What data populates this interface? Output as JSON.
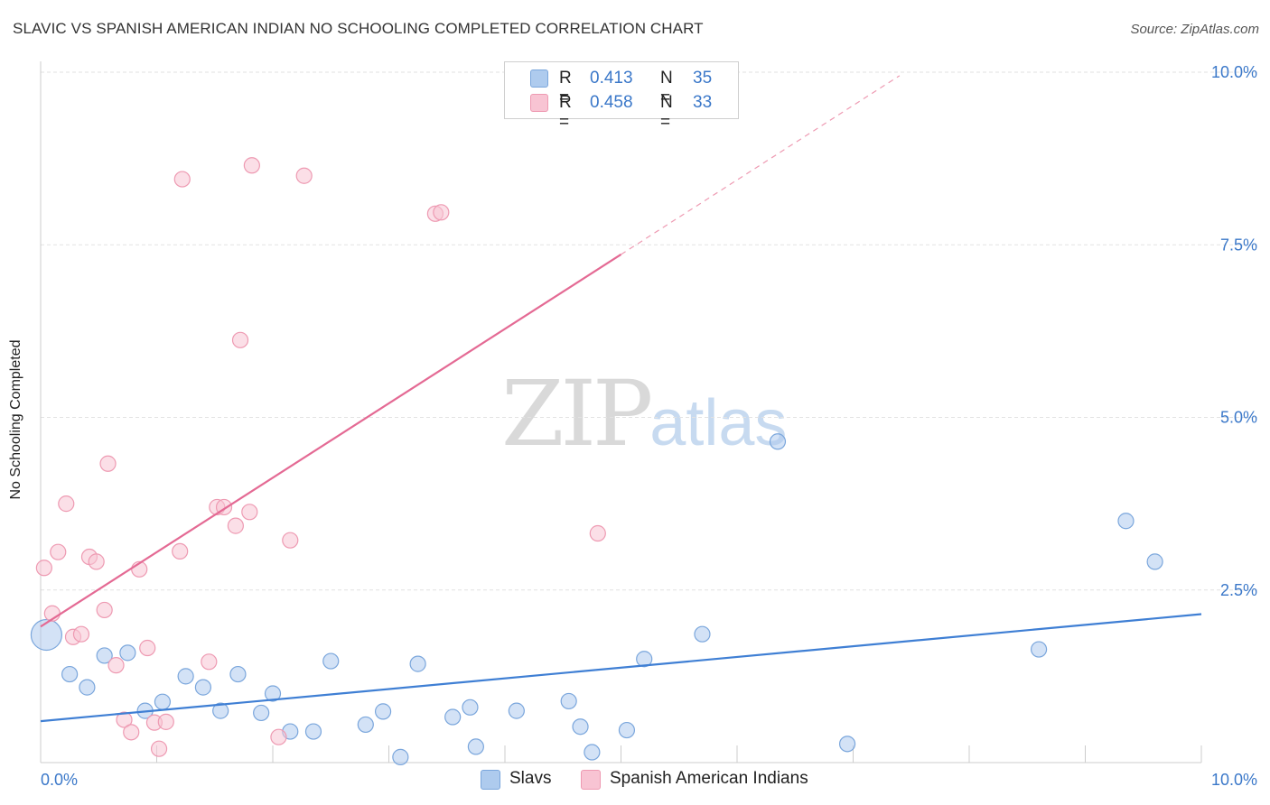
{
  "title": "SLAVIC VS SPANISH AMERICAN INDIAN NO SCHOOLING COMPLETED CORRELATION CHART",
  "source": "Source: ZipAtlas.com",
  "watermark": {
    "zip": "ZIP",
    "atlas": "atlas"
  },
  "legend": {
    "rows": [
      {
        "r_label": "R =",
        "r_value": "0.413",
        "n_label": "N =",
        "n_value": "35",
        "color": "#aecbee",
        "border": "#7aa6dc"
      },
      {
        "r_label": "R =",
        "r_value": "0.458",
        "n_label": "N =",
        "n_value": "33",
        "color": "#f8c4d3",
        "border": "#ee9ab2"
      }
    ]
  },
  "bottom_legend": [
    {
      "label": "Slavs",
      "color": "#aecbee",
      "border": "#7aa6dc"
    },
    {
      "label": "Spanish American Indians",
      "color": "#f8c4d3",
      "border": "#ee9ab2"
    }
  ],
  "chart_data": {
    "type": "scatter",
    "title": "SLAVIC VS SPANISH AMERICAN INDIAN NO SCHOOLING COMPLETED CORRELATION CHART",
    "xlabel": "",
    "ylabel": "No Schooling Completed",
    "xlim": [
      0,
      10
    ],
    "ylim": [
      0,
      10
    ],
    "x_tick_labels": [
      "0.0%",
      "10.0%"
    ],
    "y_ticks": [
      2.5,
      5.0,
      7.5,
      10.0
    ],
    "y_tick_labels": [
      "2.5%",
      "5.0%",
      "7.5%",
      "10.0%"
    ],
    "grid": true,
    "series": [
      {
        "name": "Slavs",
        "color": "#3f7fd4",
        "fill": "#aecbee",
        "stroke": "#7aa6dc",
        "trend": {
          "x0": 0.0,
          "y0": 0.6,
          "x1": 10.0,
          "y1": 2.15
        },
        "points": [
          {
            "x": 0.05,
            "y": 1.85,
            "big": true
          },
          {
            "x": 0.25,
            "y": 1.28
          },
          {
            "x": 0.4,
            "y": 1.09
          },
          {
            "x": 0.55,
            "y": 1.55
          },
          {
            "x": 0.75,
            "y": 1.59
          },
          {
            "x": 0.9,
            "y": 0.75
          },
          {
            "x": 1.05,
            "y": 0.88
          },
          {
            "x": 1.25,
            "y": 1.25
          },
          {
            "x": 1.4,
            "y": 1.09
          },
          {
            "x": 1.55,
            "y": 0.75
          },
          {
            "x": 1.7,
            "y": 1.28
          },
          {
            "x": 1.9,
            "y": 0.72
          },
          {
            "x": 2.0,
            "y": 1.0
          },
          {
            "x": 2.15,
            "y": 0.45
          },
          {
            "x": 2.35,
            "y": 0.45
          },
          {
            "x": 2.5,
            "y": 1.47
          },
          {
            "x": 2.8,
            "y": 0.55
          },
          {
            "x": 2.95,
            "y": 0.74
          },
          {
            "x": 3.1,
            "y": 0.08
          },
          {
            "x": 3.25,
            "y": 1.43
          },
          {
            "x": 3.55,
            "y": 0.66
          },
          {
            "x": 3.7,
            "y": 0.8
          },
          {
            "x": 3.75,
            "y": 0.23
          },
          {
            "x": 4.1,
            "y": 0.75
          },
          {
            "x": 4.55,
            "y": 0.89
          },
          {
            "x": 4.65,
            "y": 0.52
          },
          {
            "x": 4.75,
            "y": 0.15
          },
          {
            "x": 5.05,
            "y": 0.47
          },
          {
            "x": 5.2,
            "y": 1.5
          },
          {
            "x": 5.7,
            "y": 1.86
          },
          {
            "x": 6.35,
            "y": 4.65
          },
          {
            "x": 6.95,
            "y": 0.27
          },
          {
            "x": 8.6,
            "y": 1.64
          },
          {
            "x": 9.35,
            "y": 3.5
          },
          {
            "x": 9.6,
            "y": 2.91
          }
        ]
      },
      {
        "name": "Spanish American Indians",
        "color": "#e46a94",
        "fill": "#f8c4d3",
        "stroke": "#ee9ab2",
        "trend": {
          "x0": 0.0,
          "y0": 1.97,
          "x1": 5.0,
          "y1": 7.36,
          "dash_to": {
            "x": 7.4,
            "y": 9.95
          }
        },
        "points": [
          {
            "x": 0.03,
            "y": 2.82
          },
          {
            "x": 0.1,
            "y": 2.16
          },
          {
            "x": 0.15,
            "y": 3.05
          },
          {
            "x": 0.22,
            "y": 3.75
          },
          {
            "x": 0.28,
            "y": 1.82
          },
          {
            "x": 0.35,
            "y": 1.86
          },
          {
            "x": 0.42,
            "y": 2.98
          },
          {
            "x": 0.48,
            "y": 2.91
          },
          {
            "x": 0.55,
            "y": 2.21
          },
          {
            "x": 0.58,
            "y": 4.33
          },
          {
            "x": 0.65,
            "y": 1.41
          },
          {
            "x": 0.72,
            "y": 0.62
          },
          {
            "x": 0.78,
            "y": 0.44
          },
          {
            "x": 0.85,
            "y": 2.8
          },
          {
            "x": 0.92,
            "y": 1.66
          },
          {
            "x": 0.98,
            "y": 0.58
          },
          {
            "x": 1.02,
            "y": 0.2
          },
          {
            "x": 1.08,
            "y": 0.59
          },
          {
            "x": 1.2,
            "y": 3.06
          },
          {
            "x": 1.22,
            "y": 8.45
          },
          {
            "x": 1.45,
            "y": 1.46
          },
          {
            "x": 1.52,
            "y": 3.7
          },
          {
            "x": 1.58,
            "y": 3.7
          },
          {
            "x": 1.68,
            "y": 3.43
          },
          {
            "x": 1.72,
            "y": 6.12
          },
          {
            "x": 1.8,
            "y": 3.63
          },
          {
            "x": 1.82,
            "y": 8.65
          },
          {
            "x": 2.05,
            "y": 0.37
          },
          {
            "x": 2.15,
            "y": 3.22
          },
          {
            "x": 2.27,
            "y": 8.5
          },
          {
            "x": 3.4,
            "y": 7.95
          },
          {
            "x": 3.45,
            "y": 7.97
          },
          {
            "x": 4.8,
            "y": 3.32
          }
        ]
      }
    ]
  }
}
